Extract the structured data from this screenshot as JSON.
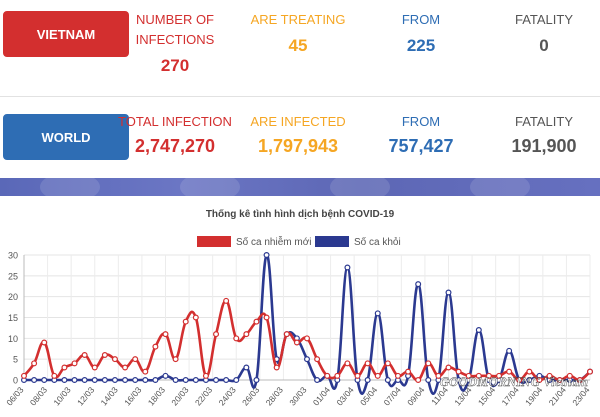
{
  "vietnam": {
    "button_label": "VIETNAM",
    "infections_label": "NUMBER OF INFECTIONS",
    "infections_value": "270",
    "treating_label": "ARE TREATING",
    "treating_value": "45",
    "from_label": "FROM",
    "from_value": "225",
    "fatality_label": "FATALITY",
    "fatality_value": "0"
  },
  "world": {
    "button_label": "WORLD",
    "infections_label": "TOTAL INFECTION",
    "infections_value": "2,747,270",
    "infected_label": "ARE INFECTED",
    "infected_value": "1,797,943",
    "from_label": "FROM",
    "from_value": "757,427",
    "fatality_label": "FATALITY",
    "fatality_value": "191,900"
  },
  "watermark": "GOODMORNING Vietnam",
  "colors": {
    "red": "#d32f2f",
    "blue": "#2e6db4",
    "orange": "#f5a623",
    "navy": "#2b3990"
  },
  "chart_data": {
    "type": "line",
    "title": "Thống kê tình hình dịch bệnh COVID-19",
    "legend_position": "top",
    "grid": true,
    "ylim": [
      0,
      30
    ],
    "yticks": [
      "0",
      "5",
      "10",
      "15",
      "20",
      "25",
      "30"
    ],
    "x_tick_labels": [
      "06/03",
      "08/03",
      "10/03",
      "12/03",
      "14/03",
      "16/03",
      "18/03",
      "20/03",
      "22/03",
      "24/03",
      "26/03",
      "28/03",
      "30/03",
      "01/04",
      "03/04",
      "05/04",
      "07/04",
      "09/04",
      "11/04",
      "13/04",
      "15/04",
      "17/04",
      "19/04",
      "21/04",
      "23/04"
    ],
    "series": [
      {
        "name": "Số ca nhiễm mới",
        "color": "#d32f2f",
        "values": [
          1,
          4,
          9,
          1,
          3,
          4,
          6,
          3,
          6,
          5,
          3,
          5,
          2,
          8,
          11,
          5,
          14,
          15,
          1,
          11,
          19,
          10,
          11,
          14,
          15,
          3,
          11,
          9,
          10,
          5,
          1,
          1,
          4,
          1,
          4,
          1,
          4,
          1,
          2,
          0,
          4,
          1,
          3,
          2,
          1,
          1,
          1,
          1,
          2,
          0,
          2,
          0,
          1,
          0,
          1,
          0,
          2
        ]
      },
      {
        "name": "Số ca khỏi",
        "color": "#2b3990",
        "values": [
          0,
          0,
          0,
          0,
          0,
          0,
          0,
          0,
          0,
          0,
          0,
          0,
          0,
          0,
          1,
          0,
          0,
          0,
          0,
          0,
          0,
          0,
          3,
          0,
          30,
          5,
          11,
          10,
          5,
          0,
          1,
          0,
          27,
          0,
          0,
          16,
          0,
          0,
          1,
          23,
          0,
          0,
          21,
          0,
          0,
          12,
          0,
          0,
          7,
          0,
          0,
          1,
          0,
          0,
          0,
          0,
          2
        ]
      }
    ]
  }
}
